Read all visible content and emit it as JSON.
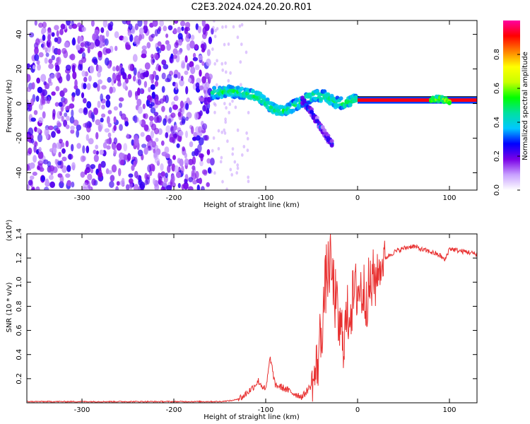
{
  "title": "C2E3.2024.024.20.20.R01",
  "chart_data": [
    {
      "type": "heatmap",
      "name": "spectrogram",
      "xlabel": "Height of straight line (km)",
      "ylabel": "Frequency (Hz)",
      "xlim": [
        -360,
        130
      ],
      "ylim": [
        -50,
        48
      ],
      "xticks": [
        -300,
        -200,
        -100,
        0,
        100
      ],
      "yticks": [
        -40,
        -20,
        0,
        20,
        40
      ],
      "noise_region_x": [
        -360,
        -158
      ],
      "main_trace": [
        {
          "x": -158,
          "y": 6
        },
        {
          "x": -140,
          "y": 7
        },
        {
          "x": -120,
          "y": 6
        },
        {
          "x": -105,
          "y": 3
        },
        {
          "x": -95,
          "y": -2
        },
        {
          "x": -85,
          "y": -5
        },
        {
          "x": -75,
          "y": -3
        },
        {
          "x": -65,
          "y": 0
        },
        {
          "x": -55,
          "y": 3
        },
        {
          "x": -45,
          "y": 5
        },
        {
          "x": -35,
          "y": 4
        },
        {
          "x": -25,
          "y": 1
        },
        {
          "x": -15,
          "y": 0
        },
        {
          "x": -5,
          "y": 2
        },
        {
          "x": 0,
          "y": 2
        },
        {
          "x": 20,
          "y": 1
        },
        {
          "x": 60,
          "y": 1
        },
        {
          "x": 80,
          "y": 2
        },
        {
          "x": 90,
          "y": 3
        },
        {
          "x": 100,
          "y": 1
        },
        {
          "x": 130,
          "y": 1
        }
      ],
      "branch_trace": [
        {
          "x": -60,
          "y": 2
        },
        {
          "x": -50,
          "y": -5
        },
        {
          "x": -42,
          "y": -12
        },
        {
          "x": -35,
          "y": -18
        },
        {
          "x": -28,
          "y": -23
        }
      ],
      "steady_line_y": [
        1,
        3
      ],
      "colorbar": {
        "label": "Normalized spectral amplitude",
        "range": [
          0,
          1
        ],
        "ticks": [
          "0.0",
          "0.2",
          "0.4",
          "0.6",
          "0.8"
        ],
        "colors": [
          "#ffffff",
          "#c8a0ff",
          "#7a00e6",
          "#0000ff",
          "#00c8ff",
          "#00e0a0",
          "#00ff00",
          "#c8ff00",
          "#ffff00",
          "#ff8000",
          "#ff0000",
          "#ff00a0"
        ]
      }
    },
    {
      "type": "line",
      "name": "snr",
      "xlabel": "Height of straight line (km)",
      "ylabel": "SNR (10 * v/v)",
      "ylabel_scale": "(x10⁴)",
      "xlim": [
        -360,
        130
      ],
      "ylim": [
        0,
        1.4
      ],
      "xticks": [
        -300,
        -200,
        -100,
        0,
        100
      ],
      "yticks": [
        "0.2",
        "0.4",
        "0.6",
        "0.8",
        "1.0",
        "1.2",
        "1.4"
      ],
      "color": "#e83030",
      "series": [
        {
          "x": -360,
          "y": 0.01
        },
        {
          "x": -300,
          "y": 0.01
        },
        {
          "x": -200,
          "y": 0.01
        },
        {
          "x": -150,
          "y": 0.01
        },
        {
          "x": -135,
          "y": 0.02
        },
        {
          "x": -125,
          "y": 0.05
        },
        {
          "x": -115,
          "y": 0.12
        },
        {
          "x": -108,
          "y": 0.18
        },
        {
          "x": -100,
          "y": 0.1
        },
        {
          "x": -95,
          "y": 0.38
        },
        {
          "x": -90,
          "y": 0.15
        },
        {
          "x": -80,
          "y": 0.12
        },
        {
          "x": -70,
          "y": 0.08
        },
        {
          "x": -60,
          "y": 0.05
        },
        {
          "x": -50,
          "y": 0.15
        },
        {
          "x": -45,
          "y": 0.25
        },
        {
          "x": -38,
          "y": 0.7
        },
        {
          "x": -34,
          "y": 1.05
        },
        {
          "x": -30,
          "y": 1.15
        },
        {
          "x": -25,
          "y": 0.9
        },
        {
          "x": -20,
          "y": 0.6
        },
        {
          "x": -15,
          "y": 0.55
        },
        {
          "x": -10,
          "y": 0.75
        },
        {
          "x": 0,
          "y": 0.95
        },
        {
          "x": 10,
          "y": 0.9
        },
        {
          "x": 20,
          "y": 1.05
        },
        {
          "x": 30,
          "y": 1.2
        },
        {
          "x": 40,
          "y": 1.25
        },
        {
          "x": 50,
          "y": 1.28
        },
        {
          "x": 60,
          "y": 1.3
        },
        {
          "x": 70,
          "y": 1.27
        },
        {
          "x": 80,
          "y": 1.25
        },
        {
          "x": 90,
          "y": 1.22
        },
        {
          "x": 95,
          "y": 1.18
        },
        {
          "x": 100,
          "y": 1.28
        },
        {
          "x": 110,
          "y": 1.26
        },
        {
          "x": 120,
          "y": 1.25
        },
        {
          "x": 130,
          "y": 1.23
        }
      ]
    }
  ]
}
